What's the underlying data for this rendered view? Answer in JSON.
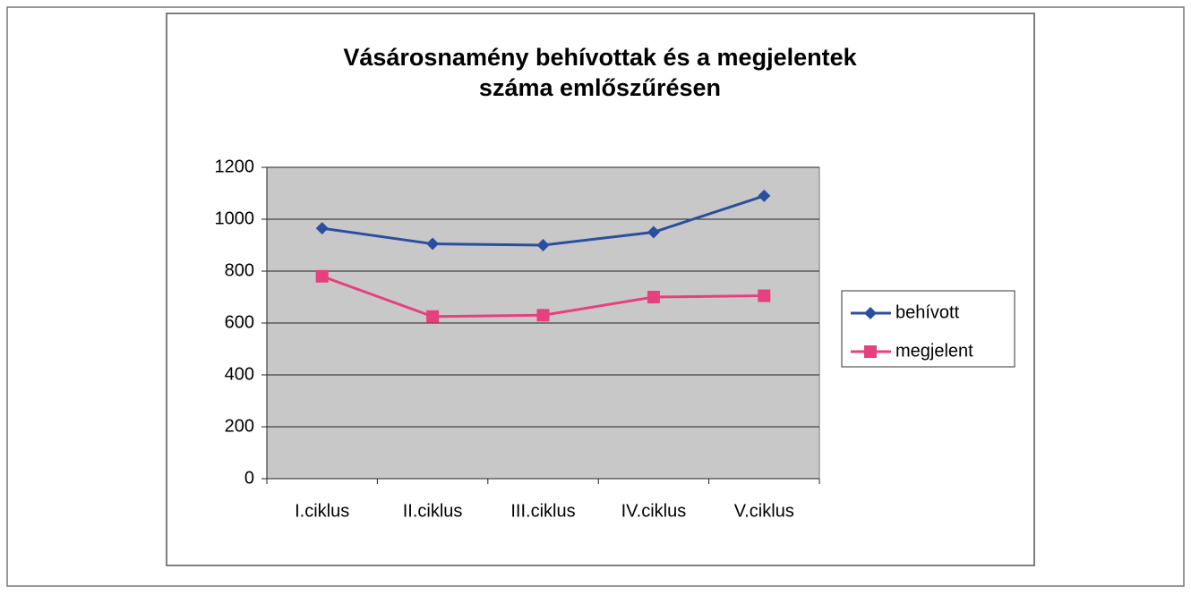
{
  "chart_data": {
    "type": "line",
    "title": [
      "Vásárosnamény behívottak és a megjelentek",
      "száma emlőszűrésen"
    ],
    "categories": [
      "I.ciklus",
      "II.ciklus",
      "III.ciklus",
      "IV.ciklus",
      "V.ciklus"
    ],
    "series": [
      {
        "name": "behívott",
        "color": "#2b4fa0",
        "marker": "diamond",
        "values": [
          965,
          905,
          900,
          950,
          1090
        ]
      },
      {
        "name": "megjelent",
        "color": "#e6407f",
        "marker": "square",
        "values": [
          780,
          625,
          630,
          700,
          705
        ]
      }
    ],
    "ylim": [
      0,
      1200
    ],
    "yticks": [
      0,
      200,
      400,
      600,
      800,
      1000,
      1200
    ],
    "grid": true,
    "legend": "right"
  }
}
